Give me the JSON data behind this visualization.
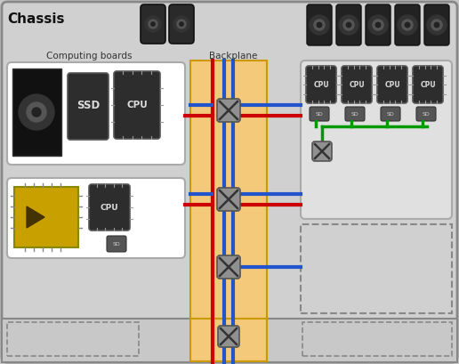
{
  "title": "Chassis",
  "subtitle_computing": "Computing boards",
  "subtitle_backplane": "Backplane",
  "bg_outer": "#c8c8c8",
  "bg_chassis": "#d0d0d0",
  "board_bg": "#ffffff",
  "backplane_bg": "#f5c97a",
  "switch_bg": "#909090",
  "gpu_board_bg": "#e0e0e0",
  "dashed_color": "#666666",
  "red_line": "#cc0000",
  "blue_line": "#2255cc",
  "green_line": "#009900",
  "figsize": [
    5.16,
    4.09
  ],
  "dpi": 100
}
